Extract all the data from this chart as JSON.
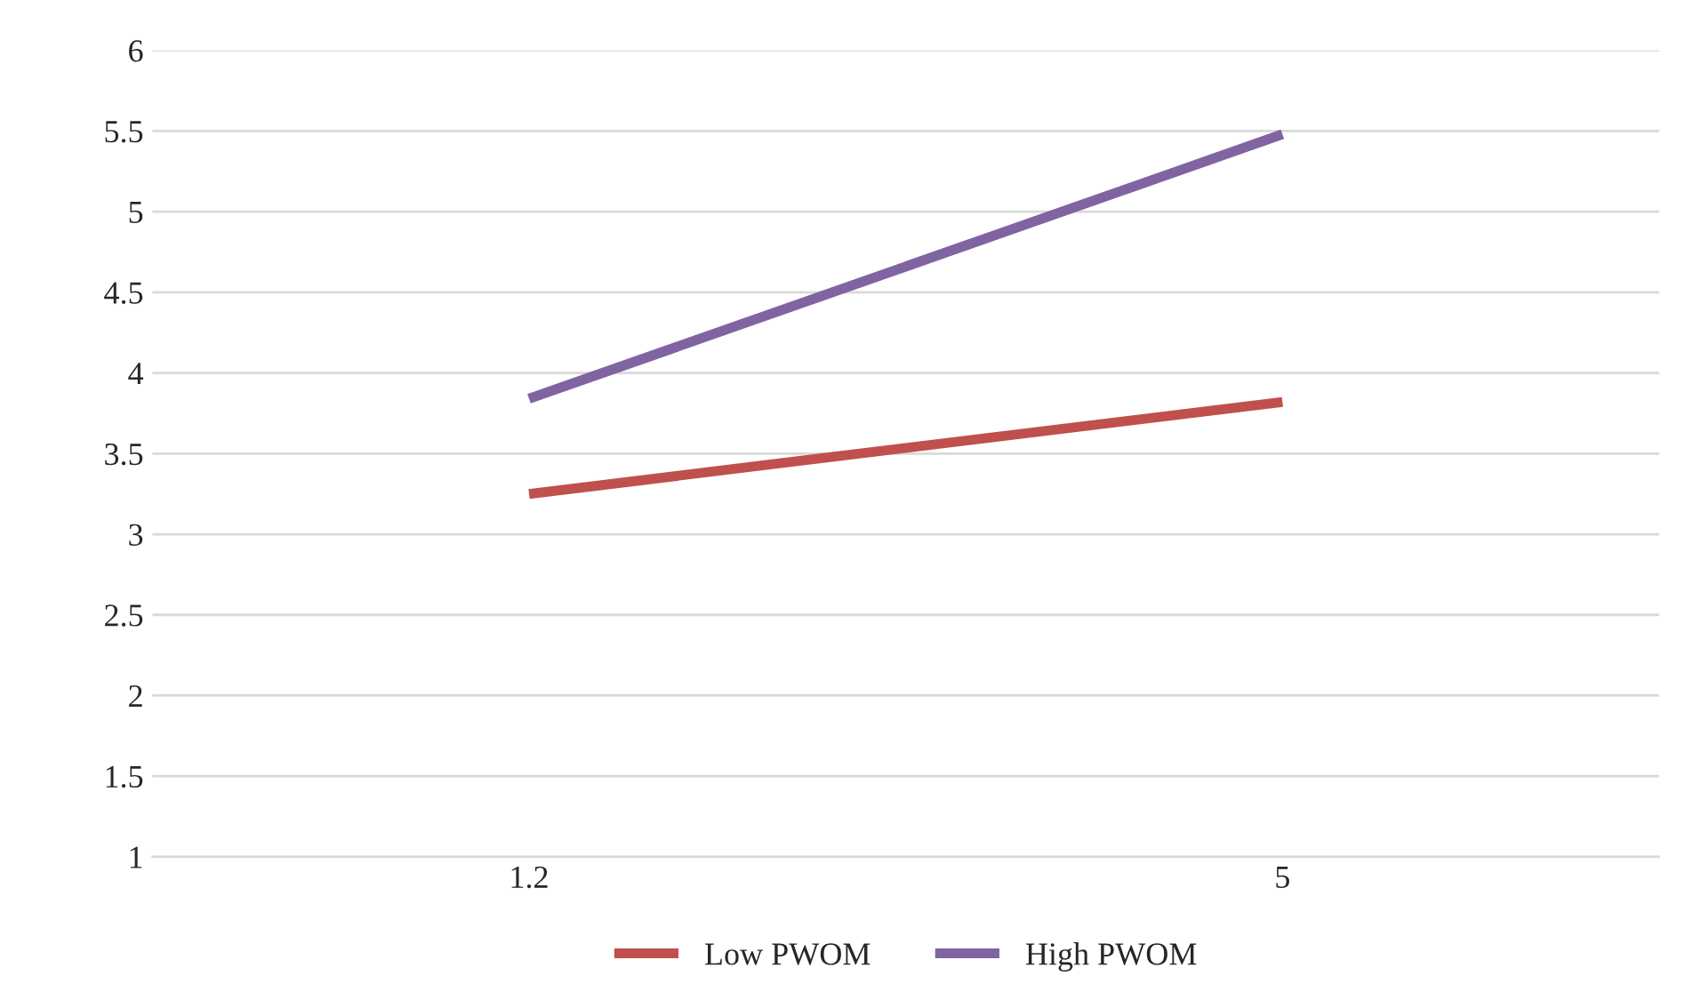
{
  "chart_data": {
    "type": "line",
    "categories": [
      "1.2",
      "5"
    ],
    "series": [
      {
        "name": "Low PWOM",
        "color": "#c0504d",
        "values": [
          3.25,
          3.82
        ]
      },
      {
        "name": "High PWOM",
        "color": "#8064a2",
        "values": [
          3.84,
          5.48
        ]
      }
    ],
    "ylim": [
      1,
      6
    ],
    "yticks": [
      1,
      1.5,
      2,
      2.5,
      3,
      3.5,
      4,
      4.5,
      5,
      5.5,
      6
    ],
    "grid": "y",
    "legend": "bottom",
    "marker": "none",
    "line_style": "solid"
  }
}
